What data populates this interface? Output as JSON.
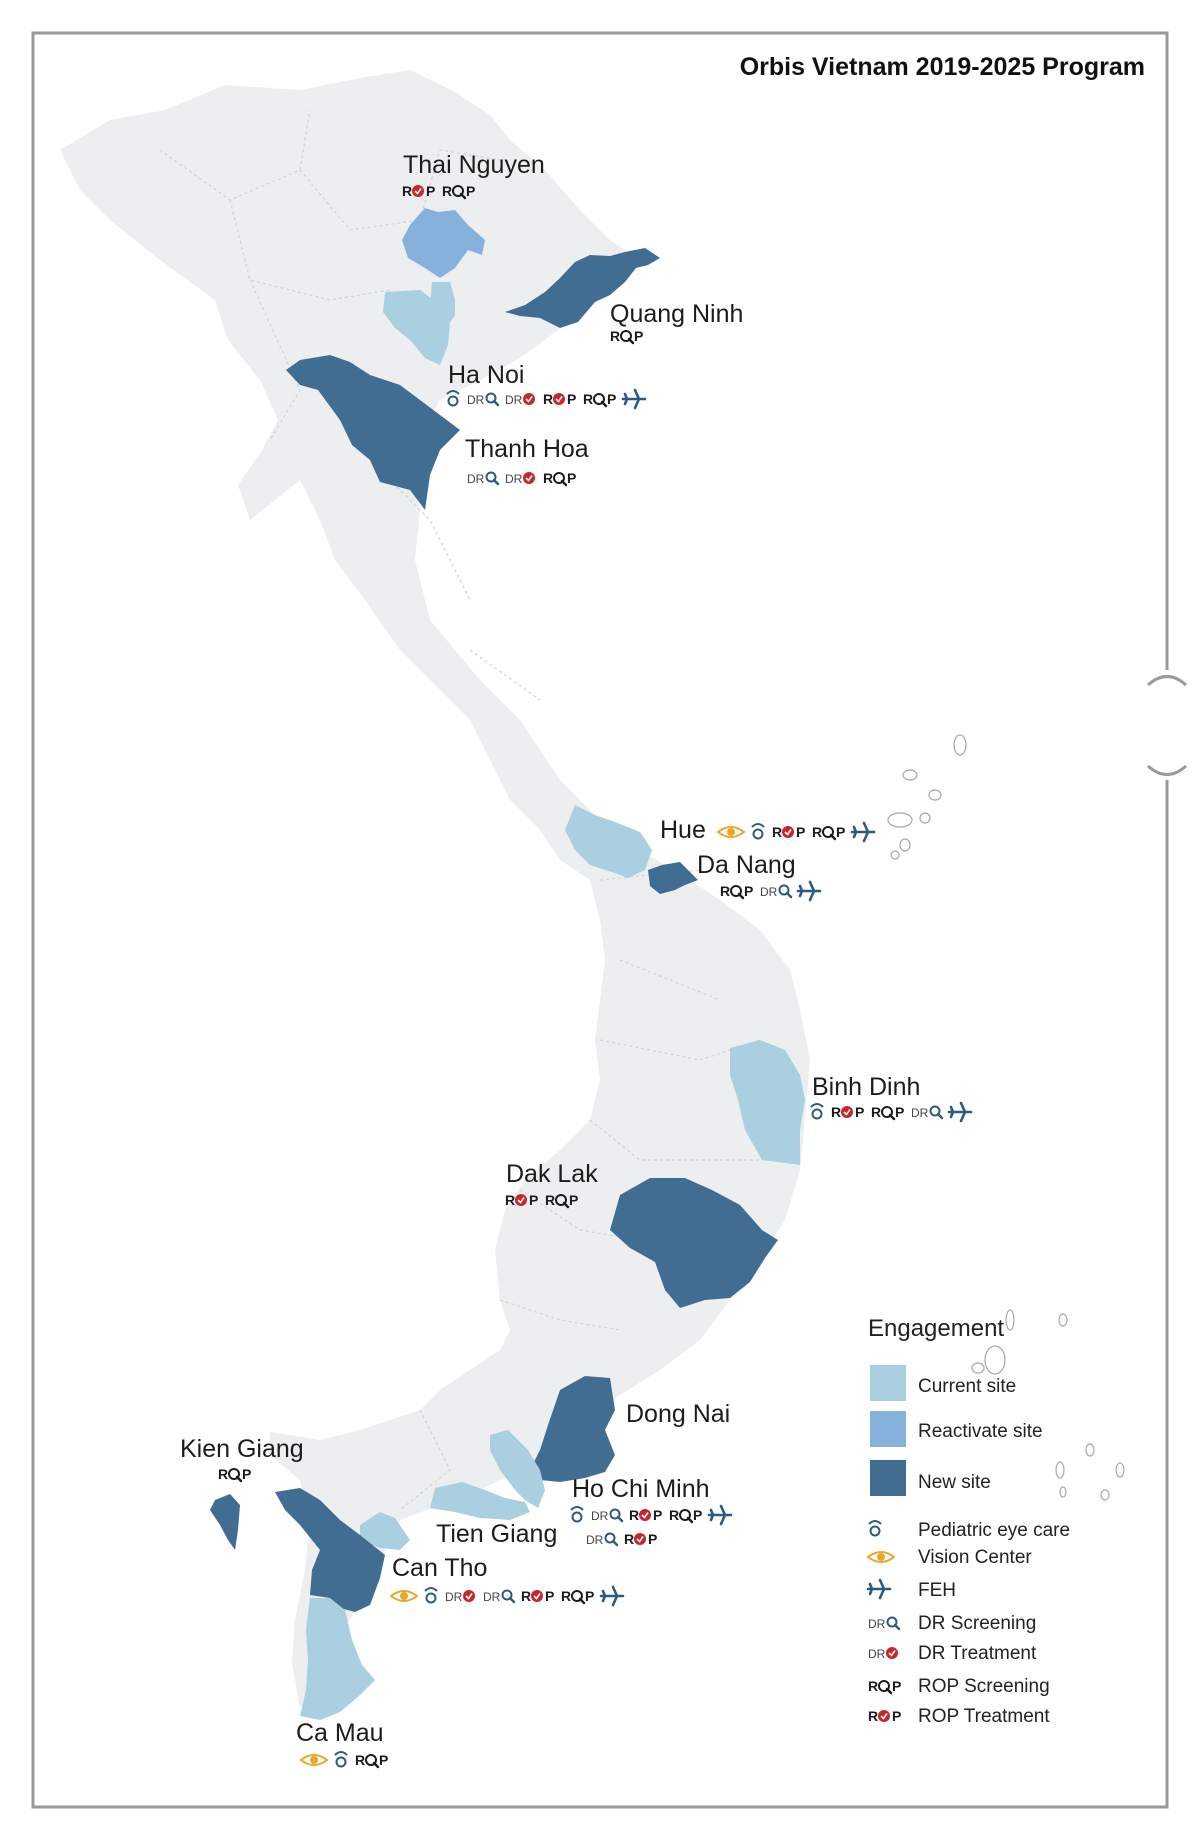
{
  "title": "Orbis Vietnam  2019-2025 Program",
  "colors": {
    "current": "#a9cfe0",
    "reactivate": "#85b1da",
    "new": "#426d93",
    "base": "#eceef0",
    "border": "#9a9a9a",
    "red": "#c8252c",
    "gold": "#e8a72a",
    "navy": "#2d5a80"
  },
  "provinces": [
    {
      "name": "Thai Nguyen",
      "icons": [
        "rop-treatment",
        "rop-screening"
      ]
    },
    {
      "name": "Quang Ninh",
      "icons": [
        "rop-screening"
      ]
    },
    {
      "name": "Ha Noi",
      "icons": [
        "pediatric",
        "dr-screening",
        "dr-treatment",
        "rop-treatment",
        "rop-screening",
        "feh"
      ]
    },
    {
      "name": "Thanh Hoa",
      "icons": [
        "dr-screening",
        "dr-treatment",
        "rop-screening"
      ]
    },
    {
      "name": "Hue",
      "icons": [
        "vision",
        "pediatric",
        "rop-treatment",
        "rop-screening",
        "feh"
      ]
    },
    {
      "name": "Da Nang",
      "icons": [
        "rop-screening",
        "dr-screening",
        "feh"
      ]
    },
    {
      "name": "Binh Dinh",
      "icons": [
        "pediatric",
        "rop-treatment",
        "rop-screening",
        "dr-screening",
        "feh"
      ]
    },
    {
      "name": "Dak Lak",
      "icons": [
        "rop-treatment",
        "rop-screening"
      ]
    },
    {
      "name": "Dong Nai",
      "icons": []
    },
    {
      "name": "Kien Giang",
      "icons": [
        "rop-screening"
      ]
    },
    {
      "name": "Ho Chi Minh",
      "icons": [
        "pediatric",
        "dr-screening",
        "rop-treatment",
        "rop-screening",
        "feh"
      ]
    },
    {
      "name": "Tien Giang",
      "icons": [
        "dr-screening",
        "rop-treatment"
      ]
    },
    {
      "name": "Can Tho",
      "icons": [
        "vision",
        "pediatric",
        "dr-treatment",
        "dr-screening",
        "rop-treatment",
        "rop-screening",
        "feh"
      ]
    },
    {
      "name": "Ca Mau",
      "icons": [
        "vision",
        "pediatric",
        "rop-screening"
      ]
    }
  ],
  "legend": {
    "heading": "Engagement",
    "sites": [
      {
        "label": "Current site",
        "color": "#a9cfe0"
      },
      {
        "label": "Reactivate site",
        "color": "#85b1da"
      },
      {
        "label": "New site",
        "color": "#426d93"
      }
    ],
    "icons": [
      {
        "label": "Pediatric eye care",
        "icon": "pediatric"
      },
      {
        "label": "Vision Center",
        "icon": "vision"
      },
      {
        "label": "FEH",
        "icon": "feh"
      },
      {
        "label": "DR Screening",
        "icon": "dr-screening"
      },
      {
        "label": "DR Treatment",
        "icon": "dr-treatment"
      },
      {
        "label": "ROP Screening",
        "icon": "rop-screening"
      },
      {
        "label": "ROP Treatment",
        "icon": "rop-treatment"
      }
    ]
  },
  "icon_text": {
    "dr": "DR",
    "r": "R",
    "p": "P"
  }
}
